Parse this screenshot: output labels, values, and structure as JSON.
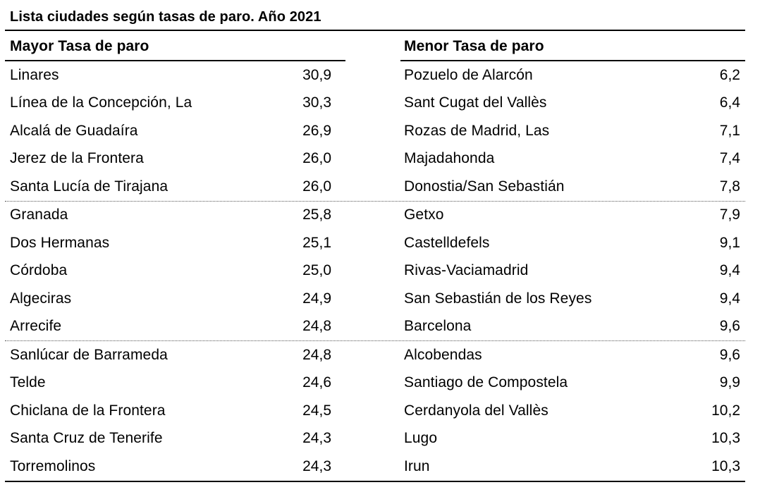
{
  "title": "Lista ciudades según tasas de paro. Año 2021",
  "table": {
    "columns": [
      {
        "header": "Mayor Tasa de paro",
        "rows": [
          {
            "city": "Linares",
            "value": "30,9"
          },
          {
            "city": "Línea de la Concepción, La",
            "value": "30,3"
          },
          {
            "city": "Alcalá de Guadaíra",
            "value": "26,9"
          },
          {
            "city": "Jerez de la Frontera",
            "value": "26,0"
          },
          {
            "city": "Santa Lucía de Tirajana",
            "value": "26,0"
          },
          {
            "city": "Granada",
            "value": "25,8"
          },
          {
            "city": "Dos Hermanas",
            "value": "25,1"
          },
          {
            "city": "Córdoba",
            "value": "25,0"
          },
          {
            "city": "Algeciras",
            "value": "24,9"
          },
          {
            "city": "Arrecife",
            "value": "24,8"
          },
          {
            "city": "Sanlúcar de Barrameda",
            "value": "24,8"
          },
          {
            "city": "Telde",
            "value": "24,6"
          },
          {
            "city": "Chiclana de la Frontera",
            "value": "24,5"
          },
          {
            "city": "Santa Cruz de Tenerife",
            "value": "24,3"
          },
          {
            "city": "Torremolinos",
            "value": "24,3"
          }
        ]
      },
      {
        "header": "Menor Tasa de paro",
        "rows": [
          {
            "city": "Pozuelo de Alarcón",
            "value": "6,2"
          },
          {
            "city": "Sant Cugat del Vallès",
            "value": "6,4"
          },
          {
            "city": "Rozas de Madrid, Las",
            "value": "7,1"
          },
          {
            "city": "Majadahonda",
            "value": "7,4"
          },
          {
            "city": "Donostia/San Sebastián",
            "value": "7,8"
          },
          {
            "city": "Getxo",
            "value": "7,9"
          },
          {
            "city": "Castelldefels",
            "value": "9,1"
          },
          {
            "city": "Rivas-Vaciamadrid",
            "value": "9,4"
          },
          {
            "city": "San Sebastián de los Reyes",
            "value": "9,4"
          },
          {
            "city": "Barcelona",
            "value": "9,6"
          },
          {
            "city": "Alcobendas",
            "value": "9,6"
          },
          {
            "city": "Santiago de Compostela",
            "value": "9,9"
          },
          {
            "city": "Cerdanyola del Vallès",
            "value": "10,2"
          },
          {
            "city": "Lugo",
            "value": "10,3"
          },
          {
            "city": "Irun",
            "value": "10,3"
          }
        ]
      }
    ]
  },
  "chart_data": {
    "type": "table",
    "title": "Lista ciudades según tasas de paro. Año 2021",
    "columns": [
      "Mayor Tasa de paro",
      "Menor Tasa de paro"
    ],
    "series": [
      {
        "name": "Mayor Tasa de paro",
        "categories": [
          "Linares",
          "Línea de la Concepción, La",
          "Alcalá de Guadaíra",
          "Jerez de la Frontera",
          "Santa Lucía de Tirajana",
          "Granada",
          "Dos Hermanas",
          "Córdoba",
          "Algeciras",
          "Arrecife",
          "Sanlúcar de Barrameda",
          "Telde",
          "Chiclana de la Frontera",
          "Santa Cruz de Tenerife",
          "Torremolinos"
        ],
        "values": [
          30.9,
          30.3,
          26.9,
          26.0,
          26.0,
          25.8,
          25.1,
          25.0,
          24.9,
          24.8,
          24.8,
          24.6,
          24.5,
          24.3,
          24.3
        ]
      },
      {
        "name": "Menor Tasa de paro",
        "categories": [
          "Pozuelo de Alarcón",
          "Sant Cugat del Vallès",
          "Rozas de Madrid, Las",
          "Majadahonda",
          "Donostia/San Sebastián",
          "Getxo",
          "Castelldefels",
          "Rivas-Vaciamadrid",
          "San Sebastián de los Reyes",
          "Barcelona",
          "Alcobendas",
          "Santiago de Compostela",
          "Cerdanyola del Vallès",
          "Lugo",
          "Irun"
        ],
        "values": [
          6.2,
          6.4,
          7.1,
          7.4,
          7.8,
          7.9,
          9.1,
          9.4,
          9.4,
          9.6,
          9.6,
          9.9,
          10.2,
          10.3,
          10.3
        ]
      }
    ],
    "layout": {
      "decimal_separator": ",",
      "grid": "dotted separators after every 5 rows",
      "legend_position": "none"
    }
  },
  "colors": {
    "text": "#000000",
    "background": "#ffffff",
    "rule": "#000000",
    "dotted_separator": "#555555"
  }
}
